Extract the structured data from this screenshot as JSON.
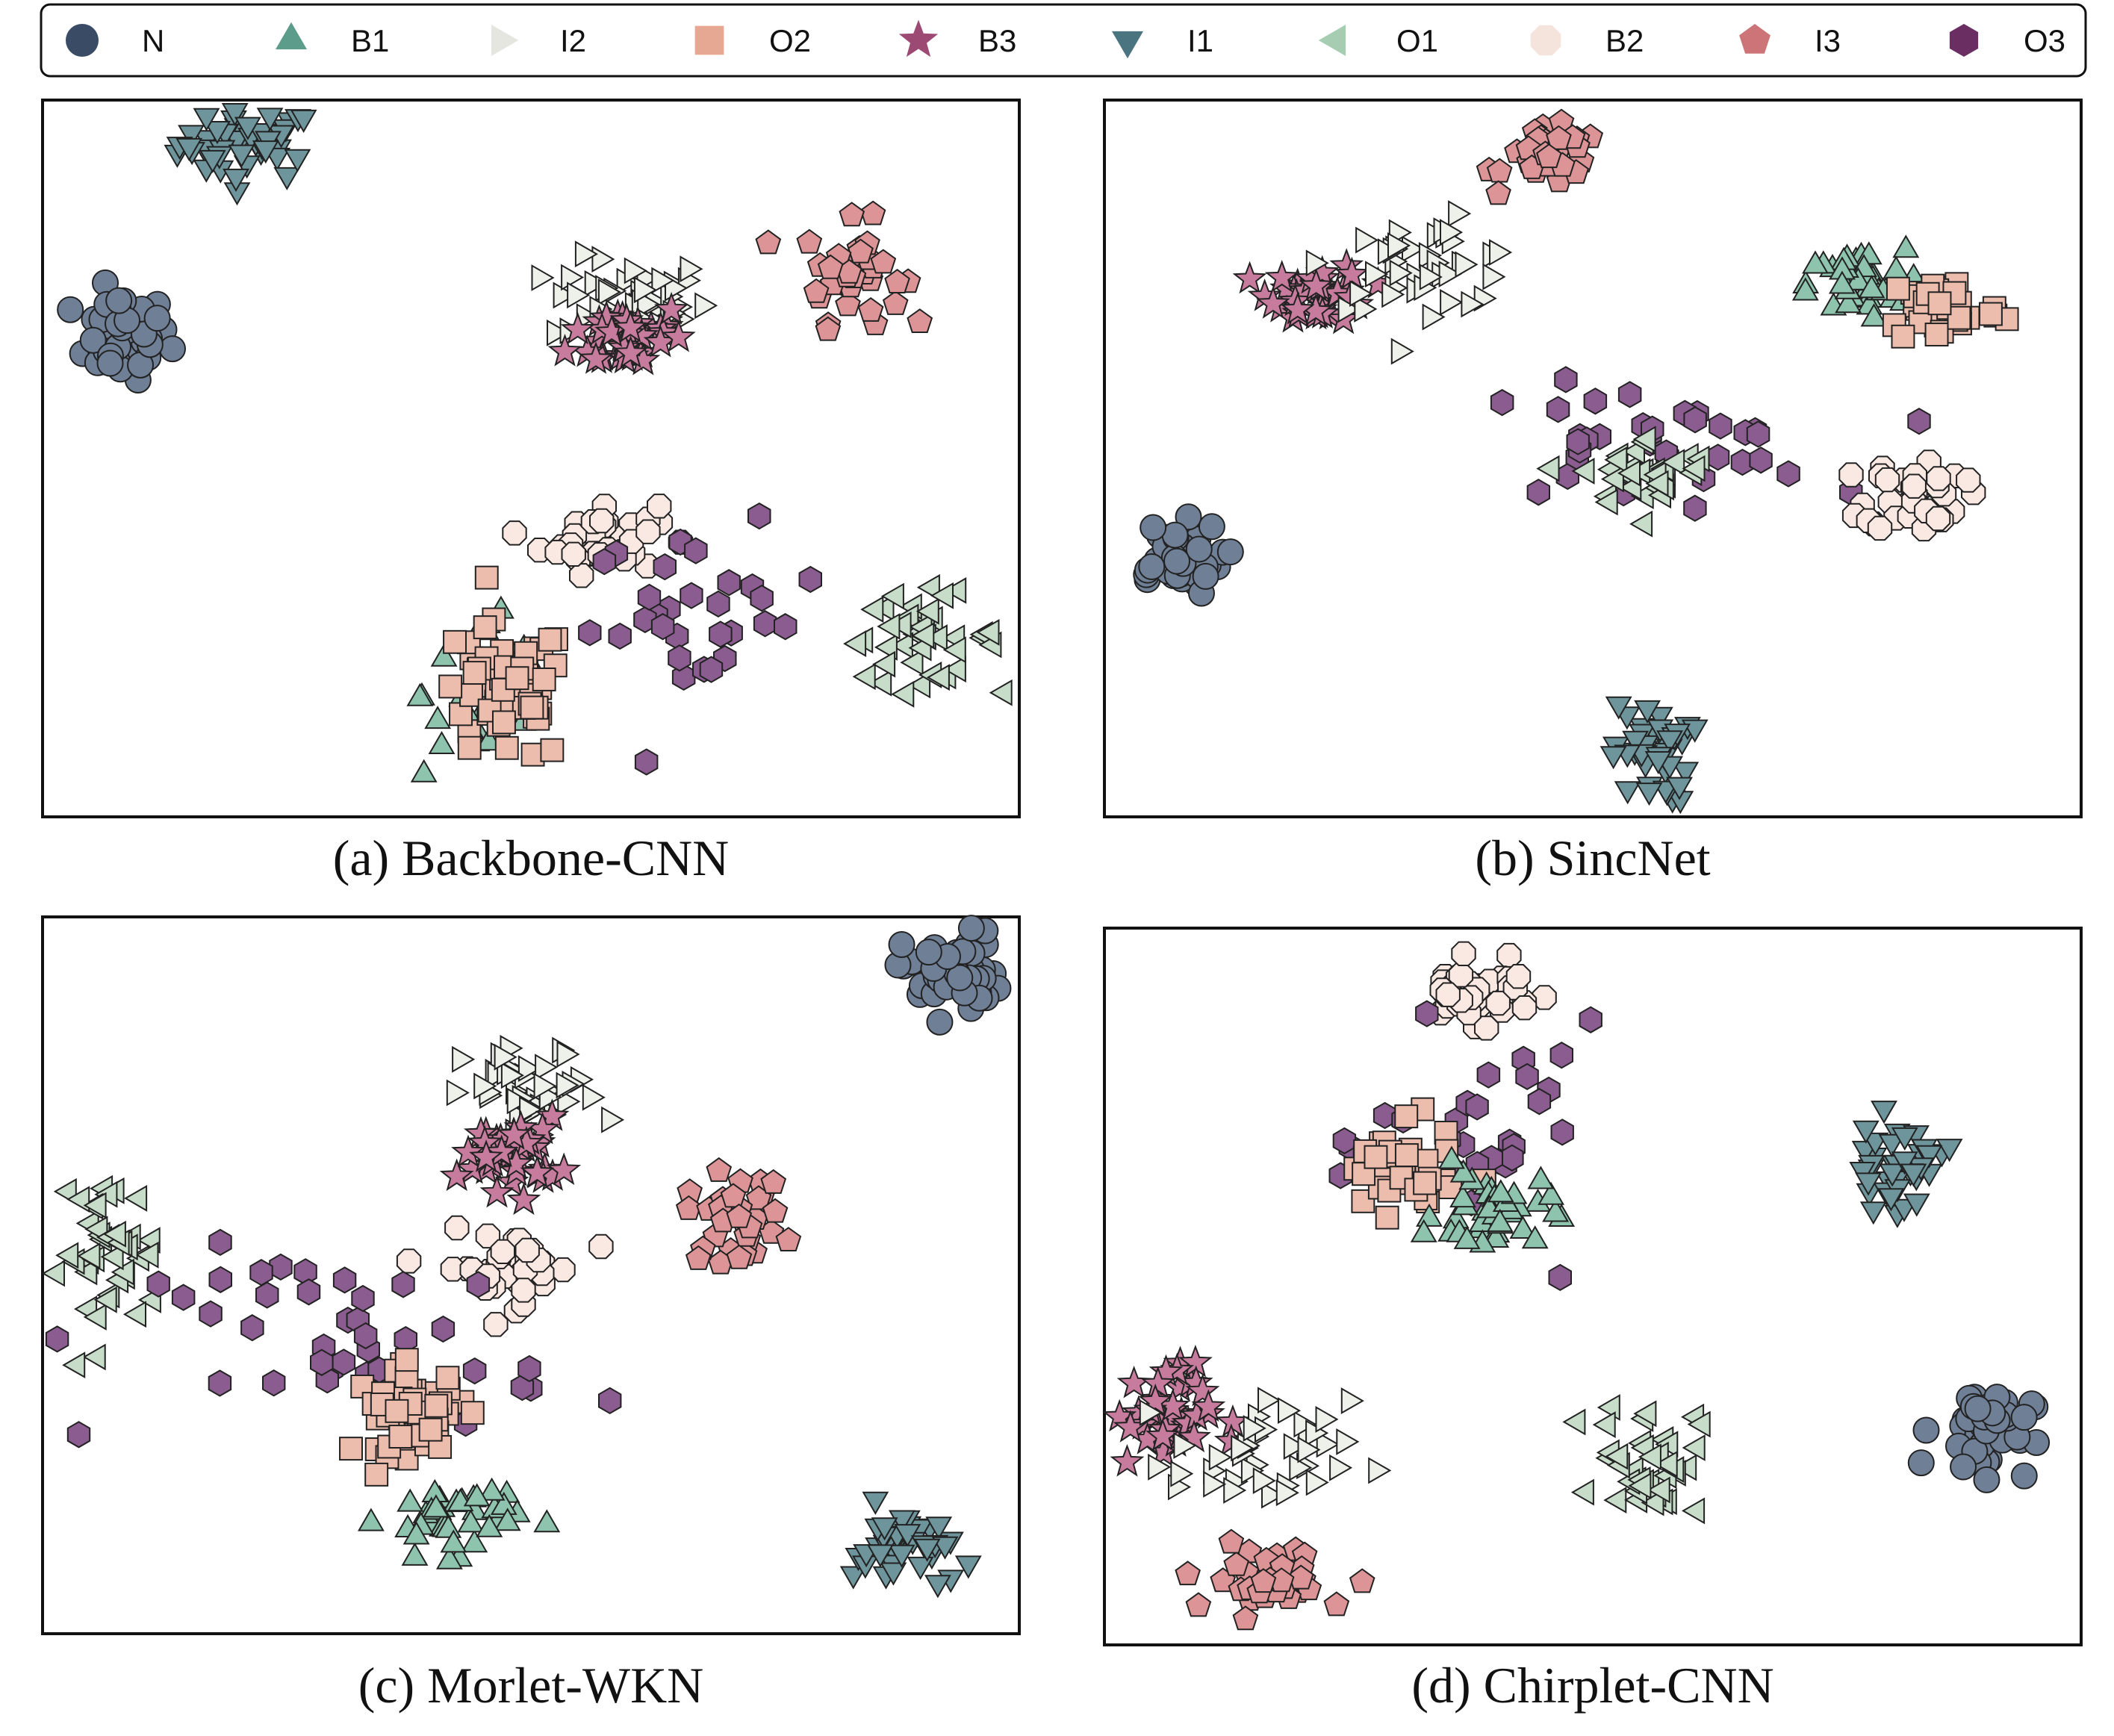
{
  "legend": [
    {
      "label": "N",
      "marker": "circle",
      "color": "#3a4b66"
    },
    {
      "label": "B1",
      "marker": "triangle-up",
      "color": "#5b9c8a"
    },
    {
      "label": "I2",
      "marker": "triangle-right",
      "color": "#e4e6df"
    },
    {
      "label": "O2",
      "marker": "square",
      "color": "#e6a893"
    },
    {
      "label": "B3",
      "marker": "star",
      "color": "#9c4a74"
    },
    {
      "label": "I1",
      "marker": "triangle-down",
      "color": "#4a7580"
    },
    {
      "label": "O1",
      "marker": "triangle-left",
      "color": "#a6cdb1"
    },
    {
      "label": "B2",
      "marker": "octagon",
      "color": "#f5e4dc"
    },
    {
      "label": "I3",
      "marker": "pentagon",
      "color": "#cc7477"
    },
    {
      "label": "O3",
      "marker": "hexagon",
      "color": "#6a2e63"
    }
  ],
  "style": {
    "scatter_colors": {
      "N": "#6f7f96",
      "B1": "#8ec4ad",
      "I2": "#eef0ea",
      "O2": "#ecbcad",
      "B3": "#c77c9e",
      "I1": "#6e959c",
      "O1": "#c7ddc9",
      "B2": "#fae9e3",
      "I3": "#dd9496",
      "O3": "#8a5c8f"
    },
    "edge_color": "#222222"
  },
  "chart_data": [
    {
      "type": "scatter",
      "caption": "(a) Backbone-CNN",
      "xlim": [
        0,
        100
      ],
      "ylim": [
        0,
        100
      ],
      "clusters": [
        {
          "class": "I1",
          "center": [
            21,
            94
          ],
          "spread": [
            7,
            5
          ],
          "count": 45
        },
        {
          "class": "N",
          "center": [
            8,
            67
          ],
          "spread": [
            5,
            6
          ],
          "count": 45
        },
        {
          "class": "I2",
          "center": [
            60,
            72
          ],
          "spread": [
            8,
            6
          ],
          "count": 45
        },
        {
          "class": "B3",
          "center": [
            60,
            67
          ],
          "spread": [
            6,
            5
          ],
          "count": 40
        },
        {
          "class": "I3",
          "center": [
            83,
            76
          ],
          "spread": [
            5,
            7
          ],
          "count": 35
        },
        {
          "class": "B2",
          "center": [
            57,
            39
          ],
          "spread": [
            6,
            5
          ],
          "count": 40
        },
        {
          "class": "O3",
          "center": [
            68,
            28
          ],
          "spread": [
            12,
            12
          ],
          "count": 30
        },
        {
          "class": "O1",
          "center": [
            90,
            25
          ],
          "spread": [
            8,
            6
          ],
          "count": 40
        },
        {
          "class": "B1",
          "center": [
            46,
            17
          ],
          "spread": [
            7,
            12
          ],
          "count": 40
        },
        {
          "class": "O2",
          "center": [
            47,
            17
          ],
          "spread": [
            7,
            10
          ],
          "count": 55
        }
      ]
    },
    {
      "type": "scatter",
      "caption": "(b) SincNet",
      "xlim": [
        0,
        100
      ],
      "ylim": [
        0,
        100
      ],
      "clusters": [
        {
          "class": "I3",
          "center": [
            46,
            92
          ],
          "spread": [
            5,
            4
          ],
          "count": 35
        },
        {
          "class": "B3",
          "center": [
            22,
            73
          ],
          "spread": [
            5,
            4
          ],
          "count": 40
        },
        {
          "class": "I2",
          "center": [
            33,
            77
          ],
          "spread": [
            10,
            6
          ],
          "count": 40
        },
        {
          "class": "O3",
          "center": [
            55,
            52
          ],
          "spread": [
            18,
            8
          ],
          "count": 35
        },
        {
          "class": "B1",
          "center": [
            77,
            74
          ],
          "spread": [
            5,
            5
          ],
          "count": 40
        },
        {
          "class": "O2",
          "center": [
            86,
            71
          ],
          "spread": [
            6,
            5
          ],
          "count": 45
        },
        {
          "class": "O1",
          "center": [
            56,
            48
          ],
          "spread": [
            7,
            5
          ],
          "count": 35
        },
        {
          "class": "B2",
          "center": [
            83,
            45
          ],
          "spread": [
            5,
            5
          ],
          "count": 40
        },
        {
          "class": "N",
          "center": [
            7,
            36
          ],
          "spread": [
            5,
            5
          ],
          "count": 45
        },
        {
          "class": "I1",
          "center": [
            56,
            9
          ],
          "spread": [
            4,
            7
          ],
          "count": 40
        }
      ]
    },
    {
      "type": "scatter",
      "caption": "(c) Morlet-WKN",
      "xlim": [
        0,
        100
      ],
      "ylim": [
        0,
        100
      ],
      "clusters": [
        {
          "class": "N",
          "center": [
            93,
            92
          ],
          "spread": [
            5,
            6
          ],
          "count": 45
        },
        {
          "class": "I2",
          "center": [
            50,
            75
          ],
          "spread": [
            7,
            7
          ],
          "count": 40
        },
        {
          "class": "B3",
          "center": [
            48,
            67
          ],
          "spread": [
            5,
            5
          ],
          "count": 45
        },
        {
          "class": "I3",
          "center": [
            71,
            58
          ],
          "spread": [
            5,
            6
          ],
          "count": 35
        },
        {
          "class": "B2",
          "center": [
            48,
            51
          ],
          "spread": [
            7,
            5
          ],
          "count": 40
        },
        {
          "class": "O1",
          "center": [
            7,
            53
          ],
          "spread": [
            5,
            11
          ],
          "count": 40
        },
        {
          "class": "O3",
          "center": [
            32,
            40
          ],
          "spread": [
            20,
            14
          ],
          "count": 40
        },
        {
          "class": "O2",
          "center": [
            38,
            31
          ],
          "spread": [
            6,
            6
          ],
          "count": 45
        },
        {
          "class": "B1",
          "center": [
            42,
            16
          ],
          "spread": [
            7,
            5
          ],
          "count": 40
        },
        {
          "class": "I1",
          "center": [
            88,
            12
          ],
          "spread": [
            5,
            6
          ],
          "count": 40
        }
      ]
    },
    {
      "type": "scatter",
      "caption": "(d) Chirplet-CNN",
      "xlim": [
        0,
        100
      ],
      "ylim": [
        0,
        100
      ],
      "clusters": [
        {
          "class": "B2",
          "center": [
            38,
            91
          ],
          "spread": [
            6,
            4
          ],
          "count": 40
        },
        {
          "class": "O3",
          "center": [
            40,
            70
          ],
          "spread": [
            12,
            15
          ],
          "count": 30
        },
        {
          "class": "O2",
          "center": [
            30,
            66
          ],
          "spread": [
            6,
            6
          ],
          "count": 45
        },
        {
          "class": "B1",
          "center": [
            40,
            60
          ],
          "spread": [
            6,
            6
          ],
          "count": 40
        },
        {
          "class": "I1",
          "center": [
            81,
            67
          ],
          "spread": [
            5,
            6
          ],
          "count": 40
        },
        {
          "class": "O1",
          "center": [
            56,
            26
          ],
          "spread": [
            5,
            8
          ],
          "count": 40
        },
        {
          "class": "N",
          "center": [
            90,
            30
          ],
          "spread": [
            5,
            6
          ],
          "count": 45
        },
        {
          "class": "B3",
          "center": [
            6,
            32
          ],
          "spread": [
            5,
            7
          ],
          "count": 40
        },
        {
          "class": "I2",
          "center": [
            16,
            26
          ],
          "spread": [
            9,
            8
          ],
          "count": 40
        },
        {
          "class": "I3",
          "center": [
            17,
            9
          ],
          "spread": [
            9,
            5
          ],
          "count": 35
        }
      ]
    }
  ]
}
